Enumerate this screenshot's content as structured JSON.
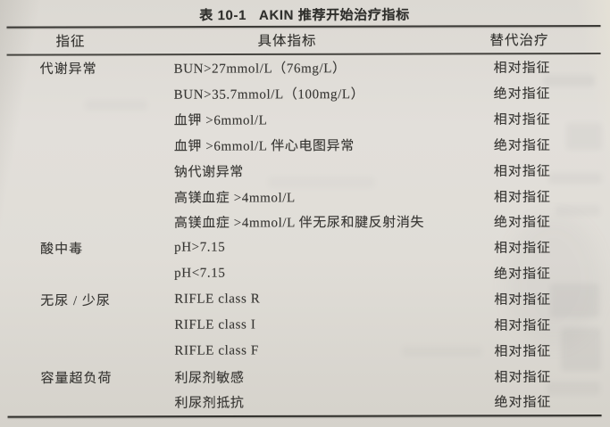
{
  "caption": {
    "label": "表 10-1",
    "text": "AKIN 推荐开始治疗指标"
  },
  "table": {
    "columns": [
      "指征",
      "具体指标",
      "替代治疗"
    ],
    "rows": [
      {
        "indication": "代谢异常",
        "indicator": "BUN>27mmol/L（76mg/L）",
        "therapy": "相对指征"
      },
      {
        "indication": "",
        "indicator": "BUN>35.7mmol/L（100mg/L）",
        "therapy": "绝对指征"
      },
      {
        "indication": "",
        "indicator": "血钾 >6mmol/L",
        "therapy": "相对指征"
      },
      {
        "indication": "",
        "indicator": "血钾 >6mmol/L 伴心电图异常",
        "therapy": "绝对指征"
      },
      {
        "indication": "",
        "indicator": "钠代谢异常",
        "therapy": "相对指征"
      },
      {
        "indication": "",
        "indicator": "高镁血症 >4mmol/L",
        "therapy": "相对指征"
      },
      {
        "indication": "",
        "indicator": "高镁血症 >4mmol/L 伴无尿和腱反射消失",
        "therapy": "绝对指征"
      },
      {
        "indication": "酸中毒",
        "indicator": "pH>7.15",
        "therapy": "相对指征"
      },
      {
        "indication": "",
        "indicator": "pH<7.15",
        "therapy": "绝对指征"
      },
      {
        "indication": "无尿 / 少尿",
        "indicator": "RIFLE class R",
        "therapy": "相对指征"
      },
      {
        "indication": "",
        "indicator": "RIFLE class I",
        "therapy": "相对指征"
      },
      {
        "indication": "",
        "indicator": "RIFLE class F",
        "therapy": "相对指征"
      },
      {
        "indication": "容量超负荷",
        "indicator": "利尿剂敏感",
        "therapy": "相对指征"
      },
      {
        "indication": "",
        "indicator": "利尿剂抵抗",
        "therapy": "绝对指征"
      }
    ]
  },
  "colors": {
    "paper": "#dfdcd6",
    "ink": "#343431",
    "rule": "#3a3935"
  }
}
